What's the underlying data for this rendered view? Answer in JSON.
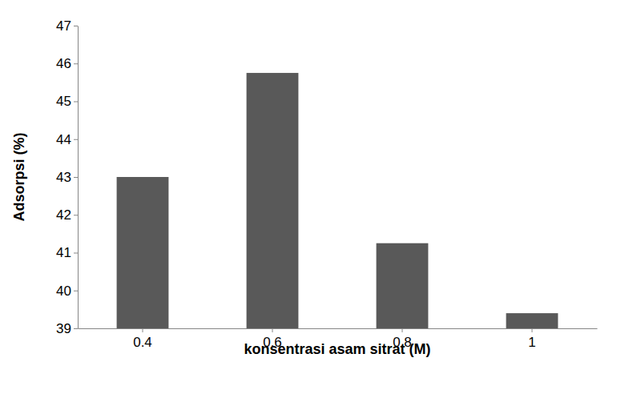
{
  "chart_data": {
    "type": "bar",
    "x_label": "konsentrasi asam sitrat (M)",
    "y_label": "Adsorpsi (%)",
    "categories": [
      "0.4",
      "0.6",
      "0.8",
      "1"
    ],
    "values": [
      43.0,
      45.75,
      41.25,
      39.4
    ],
    "color": "#595959",
    "ylim": [
      39,
      47
    ],
    "yticks": [
      39,
      40,
      41,
      42,
      43,
      44,
      45,
      46,
      47
    ],
    "grid": false
  }
}
